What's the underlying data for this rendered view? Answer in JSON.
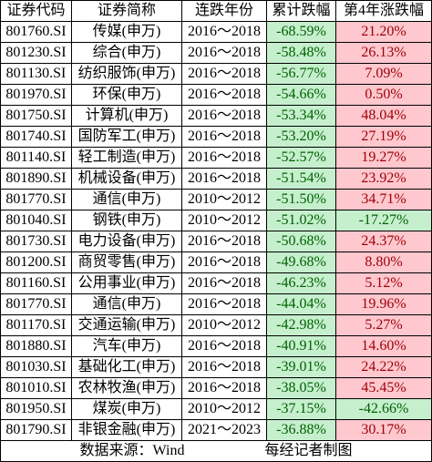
{
  "colors": {
    "rise_bg": "#ffc7ce",
    "rise_text": "#9c0006",
    "fall_bg": "#c6efce",
    "fall_text": "#006100",
    "grid_line": "#000000"
  },
  "chart_data": {
    "type": "table",
    "columns": [
      "证券代码",
      "证券简称",
      "连跌年份",
      "累计跌幅",
      "第4年涨跌幅"
    ],
    "rows": [
      [
        "801760.SI",
        "传媒(申万)",
        "2016～2018",
        "-68.59%",
        "21.20%"
      ],
      [
        "801230.SI",
        "综合(申万)",
        "2016～2018",
        "-58.48%",
        "26.13%"
      ],
      [
        "801130.SI",
        "纺织服饰(申万)",
        "2016～2018",
        "-56.77%",
        "7.09%"
      ],
      [
        "801970.SI",
        "环保(申万)",
        "2016～2018",
        "-54.66%",
        "0.50%"
      ],
      [
        "801750.SI",
        "计算机(申万)",
        "2016～2018",
        "-53.34%",
        "48.04%"
      ],
      [
        "801740.SI",
        "国防军工(申万)",
        "2016～2018",
        "-53.20%",
        "27.19%"
      ],
      [
        "801140.SI",
        "轻工制造(申万)",
        "2016～2018",
        "-52.57%",
        "19.27%"
      ],
      [
        "801890.SI",
        "机械设备(申万)",
        "2016～2018",
        "-51.54%",
        "23.92%"
      ],
      [
        "801770.SI",
        "通信(申万)",
        "2010～2012",
        "-51.50%",
        "34.71%"
      ],
      [
        "801040.SI",
        "钢铁(申万)",
        "2010～2012",
        "-51.02%",
        "-17.27%"
      ],
      [
        "801730.SI",
        "电力设备(申万)",
        "2016～2018",
        "-50.68%",
        "24.37%"
      ],
      [
        "801200.SI",
        "商贸零售(申万)",
        "2016～2018",
        "-49.68%",
        "8.80%"
      ],
      [
        "801160.SI",
        "公用事业(申万)",
        "2016～2018",
        "-46.23%",
        "5.12%"
      ],
      [
        "801770.SI",
        "通信(申万)",
        "2016～2018",
        "-44.04%",
        "19.96%"
      ],
      [
        "801170.SI",
        "交通运输(申万)",
        "2010～2012",
        "-42.98%",
        "5.27%"
      ],
      [
        "801880.SI",
        "汽车(申万)",
        "2016～2018",
        "-40.91%",
        "14.60%"
      ],
      [
        "801030.SI",
        "基础化工(申万)",
        "2016～2018",
        "-39.01%",
        "24.22%"
      ],
      [
        "801010.SI",
        "农林牧渔(申万)",
        "2016～2018",
        "-38.05%",
        "45.45%"
      ],
      [
        "801950.SI",
        "煤炭(申万)",
        "2010～2012",
        "-37.15%",
        "-42.66%"
      ],
      [
        "801790.SI",
        "非银金融(申万)",
        "2021～2023",
        "-36.88%",
        "30.17%"
      ]
    ]
  },
  "footer": {
    "source": "数据来源：Wind",
    "credit": "每经记者制图"
  }
}
